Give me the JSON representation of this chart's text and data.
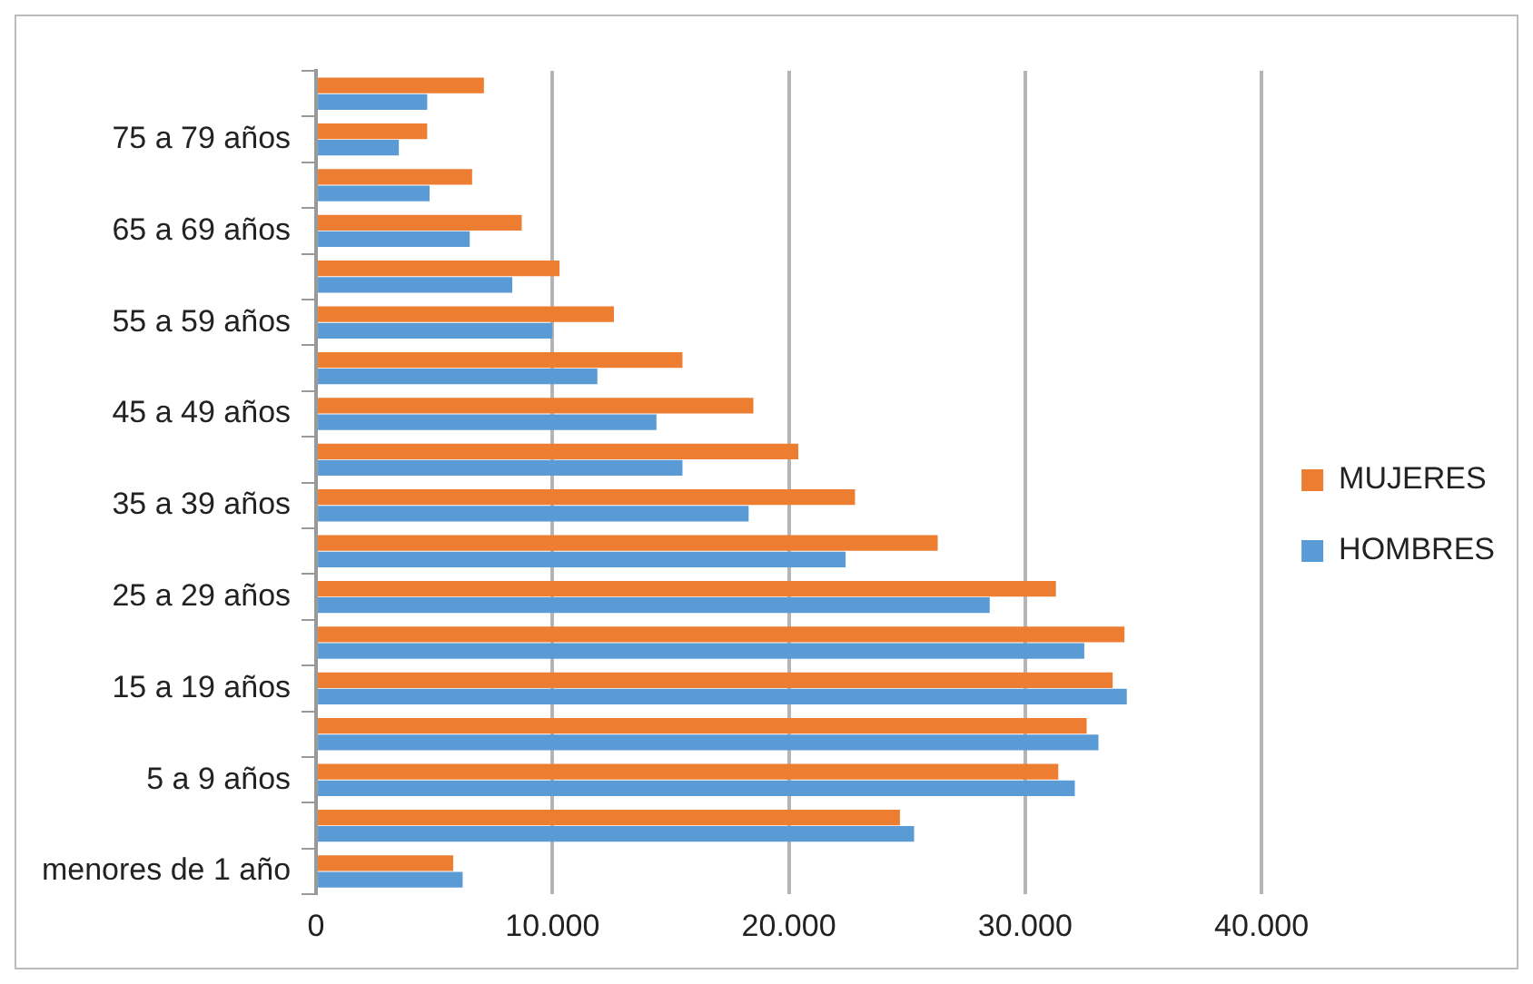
{
  "chart_data": {
    "type": "bar",
    "orientation": "horizontal",
    "categories": [
      null,
      "75 a 79 años",
      null,
      "65 a 69 años",
      null,
      "55 a 59 años",
      null,
      "45 a 49 años",
      null,
      "35 a 39 años",
      null,
      "25 a 29 años",
      null,
      "15 a 19 años",
      null,
      "5 a 9 años",
      null,
      "menores de 1 año"
    ],
    "series": [
      {
        "name": "MUJERES",
        "color": "#ed7d31",
        "values": [
          7100,
          4700,
          6600,
          8700,
          10300,
          12600,
          15500,
          18500,
          20400,
          22800,
          26300,
          31300,
          34200,
          33700,
          32600,
          31400,
          24700,
          5800
        ]
      },
      {
        "name": "HOMBRES",
        "color": "#5b9bd5",
        "values": [
          4700,
          3500,
          4800,
          6500,
          8300,
          10000,
          11900,
          14400,
          15500,
          18300,
          22400,
          28500,
          32500,
          34300,
          33100,
          32100,
          25300,
          6200
        ]
      }
    ],
    "xlim": [
      0,
      40000
    ],
    "xticks": [
      0,
      {
        "value": 10000,
        "label": "10.000"
      },
      {
        "value": 20000,
        "label": "20.000"
      },
      {
        "value": 30000,
        "label": "30.000"
      },
      {
        "value": 40000,
        "label": "40.000"
      }
    ],
    "grid": "x",
    "legend": "right"
  }
}
